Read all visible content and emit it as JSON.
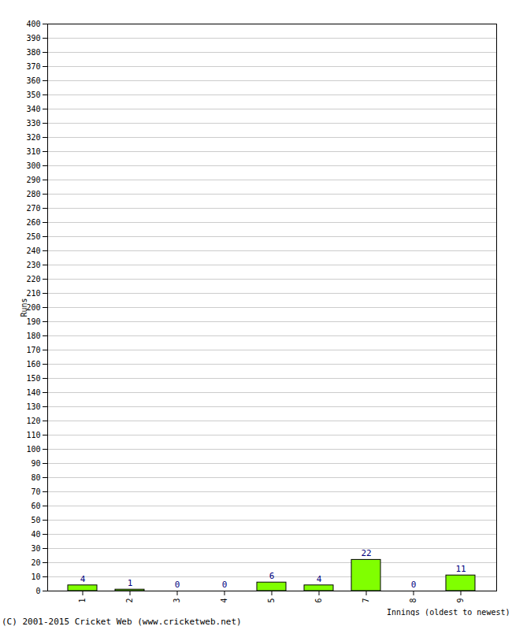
{
  "chart_data": {
    "type": "bar",
    "categories": [
      "1",
      "2",
      "3",
      "4",
      "5",
      "6",
      "7",
      "8",
      "9"
    ],
    "values": [
      4,
      1,
      0,
      0,
      6,
      4,
      22,
      0,
      11
    ],
    "color": "#80ff00",
    "x_label": "Innings (oldest to newest)",
    "y_label": "Runs",
    "caption": "(C) 2001-2015 Cricket Web (www.cricketweb.net)",
    "ylim": [
      0,
      400
    ],
    "yticks": [
      0,
      10,
      20,
      30,
      40,
      50,
      60,
      70,
      80,
      90,
      100,
      110,
      120,
      130,
      140,
      150,
      160,
      170,
      180,
      190,
      200,
      210,
      220,
      230,
      240,
      250,
      260,
      270,
      280,
      290,
      300,
      310,
      320,
      330,
      340,
      350,
      360,
      370,
      380,
      390,
      400
    ],
    "grid": true,
    "data_labels": true
  }
}
